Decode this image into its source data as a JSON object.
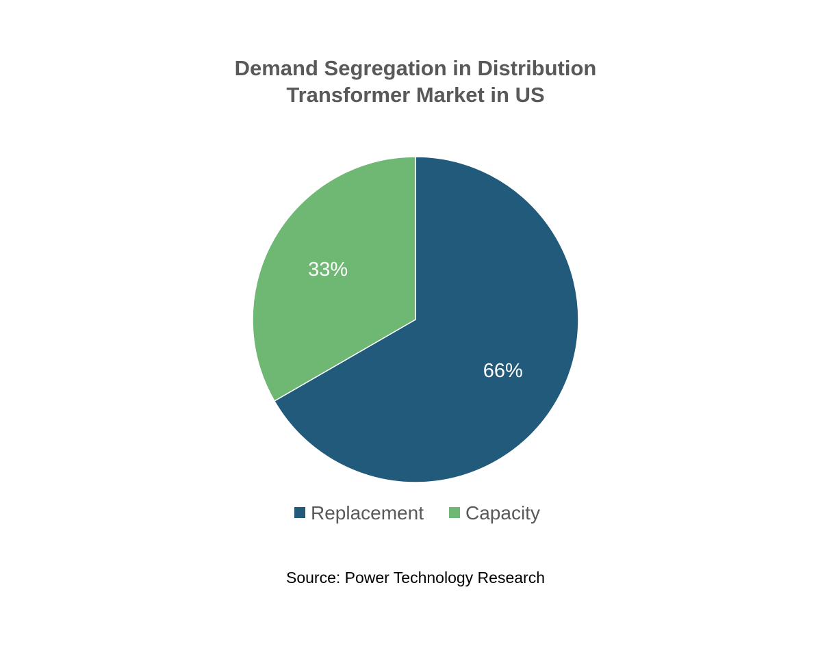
{
  "chart_data": {
    "type": "pie",
    "title": [
      "Demand Segregation in Distribution",
      "Transformer Market in US"
    ],
    "slices": [
      {
        "name": "Replacement",
        "value": 66,
        "label": "66%",
        "color": "#215a7b"
      },
      {
        "name": "Capacity",
        "value": 33,
        "label": "33%",
        "color": "#6fb874"
      }
    ],
    "legend_position": "bottom",
    "slice_border_color": "#ffffff"
  },
  "footer": {
    "source": "Source: Power Technology Research"
  }
}
